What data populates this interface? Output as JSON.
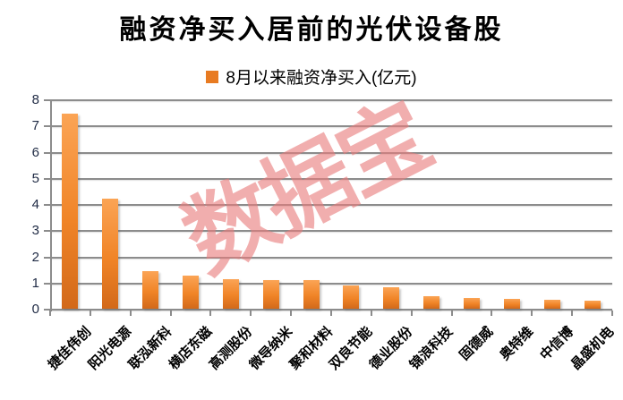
{
  "chart_data": {
    "type": "bar",
    "title": "融资净买入居前的光伏设备股",
    "legend_label": "8月以来融资净买入(亿元)",
    "legend_position": "top",
    "categories": [
      "捷佳伟创",
      "阳光电源",
      "联泓新科",
      "横店东磁",
      "高测股份",
      "微导纳米",
      "聚和材料",
      "双良节能",
      "德业股份",
      "锦浪科技",
      "固德威",
      "奥特维",
      "中信博",
      "晶盛机电"
    ],
    "values": [
      7.45,
      4.2,
      1.42,
      1.25,
      1.12,
      1.1,
      1.08,
      0.9,
      0.82,
      0.48,
      0.42,
      0.39,
      0.35,
      0.3
    ],
    "xlabel": "",
    "ylabel": "",
    "ylim": [
      0,
      8
    ],
    "yticks": [
      0,
      1,
      2,
      3,
      4,
      5,
      6,
      7,
      8
    ],
    "grid": true
  },
  "watermark": {
    "text": "数据宝",
    "color": "rgba(233,125,125,0.62)"
  },
  "colors": {
    "bar_top": "#FBA455",
    "bar_mid": "#F08427",
    "bar_bottom": "#D2691A",
    "legend_swatch": "#E87B22",
    "gridline": "#8C8C8C",
    "axis_line": "#8C8C8C",
    "axis_text": "#1F2A44",
    "title_text": "#000000"
  }
}
